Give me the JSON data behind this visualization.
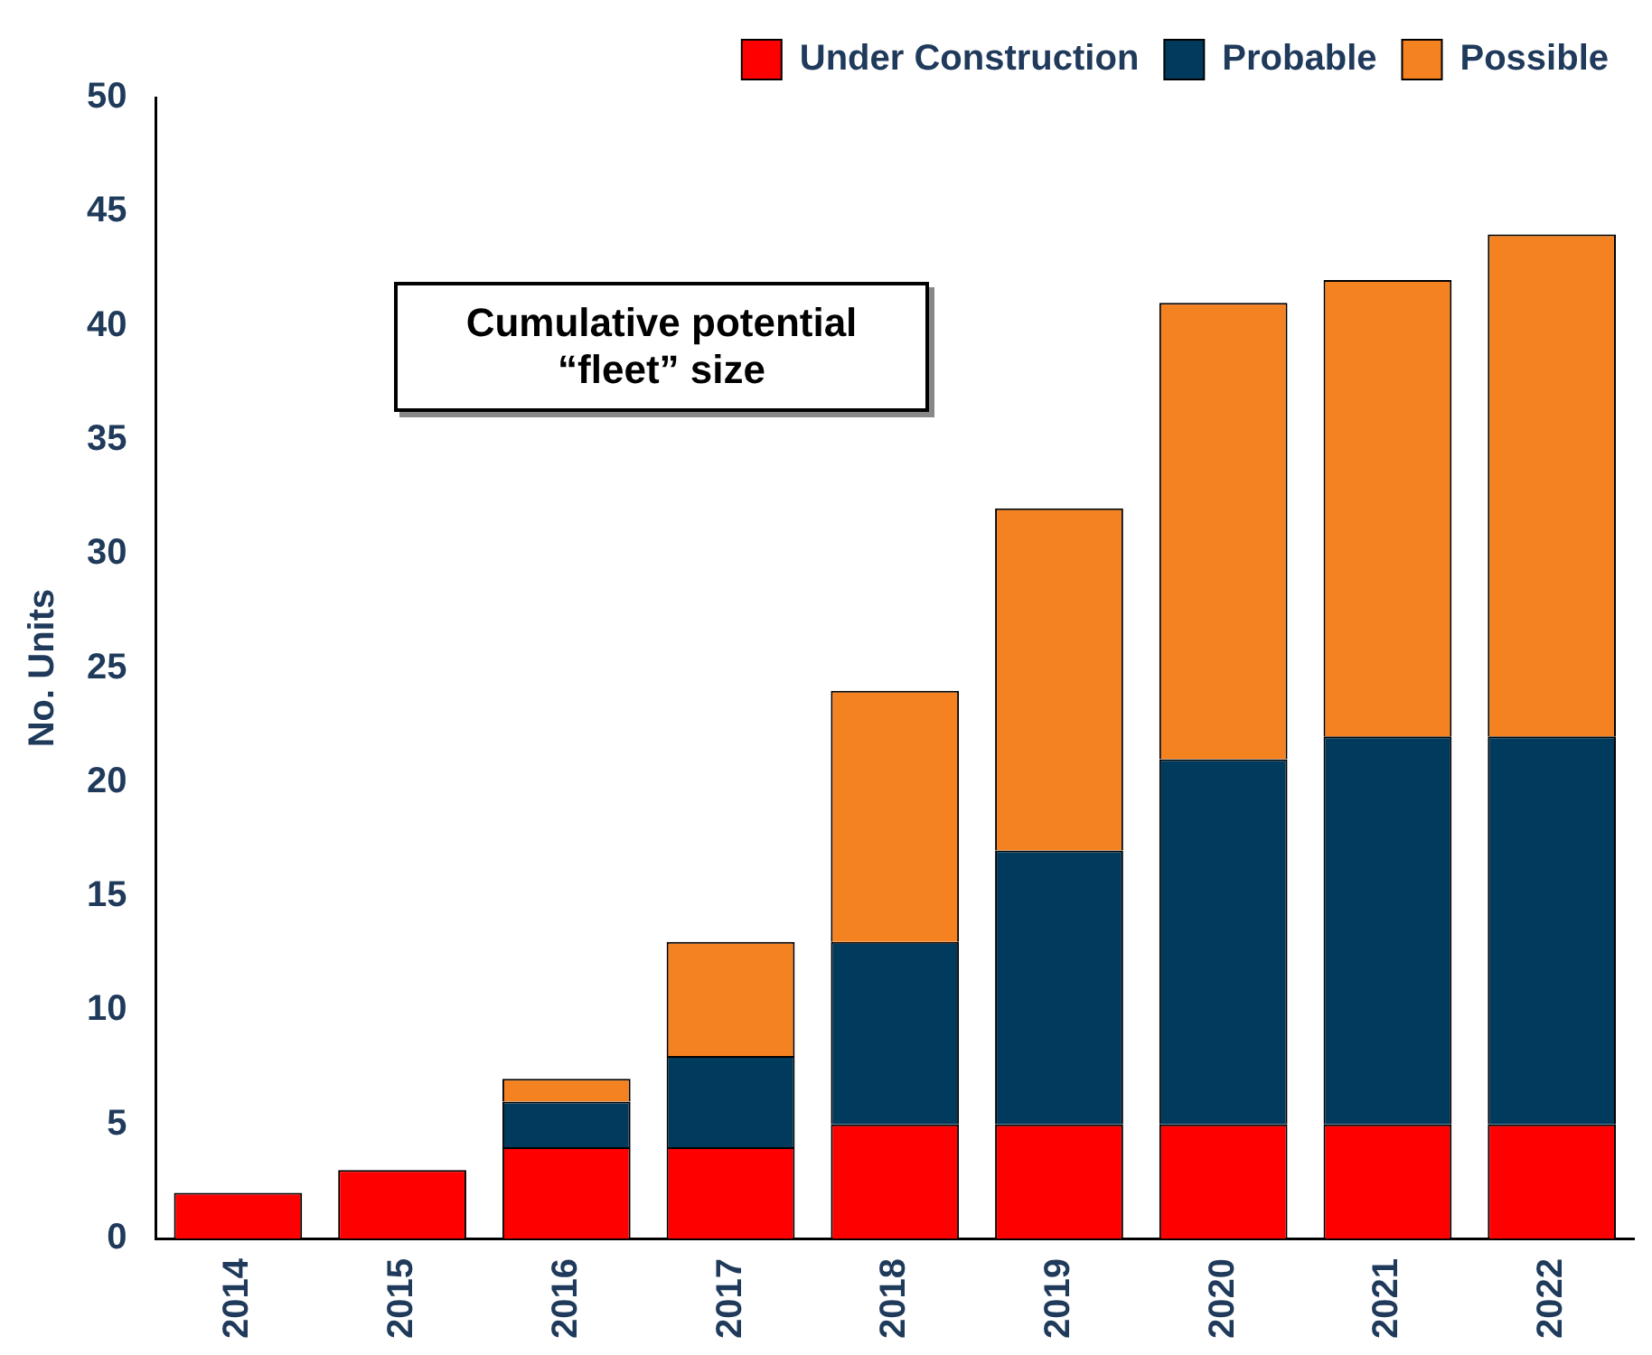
{
  "chart_data": {
    "type": "bar",
    "stacked": true,
    "ylabel": "No. Units",
    "categories": [
      "2014",
      "2015",
      "2016",
      "2017",
      "2018",
      "2019",
      "2020",
      "2021",
      "2022"
    ],
    "series": [
      {
        "name": "Under Construction",
        "color": "#ff0000",
        "values": [
          2,
          3,
          4,
          4,
          5,
          5,
          5,
          5,
          5
        ]
      },
      {
        "name": "Probable",
        "color": "#003a5c",
        "values": [
          0,
          0,
          2,
          4,
          8,
          12,
          16,
          17,
          17
        ]
      },
      {
        "name": "Possible",
        "color": "#f58220",
        "values": [
          0,
          0,
          1,
          5,
          11,
          15,
          20,
          20,
          22
        ]
      }
    ],
    "ylim": [
      0,
      50
    ],
    "yticks": [
      0,
      5,
      10,
      15,
      20,
      25,
      30,
      35,
      40,
      45,
      50
    ],
    "grid": false,
    "legend": "top",
    "annotations": [
      "Cumulative potential “fleet” size"
    ]
  }
}
